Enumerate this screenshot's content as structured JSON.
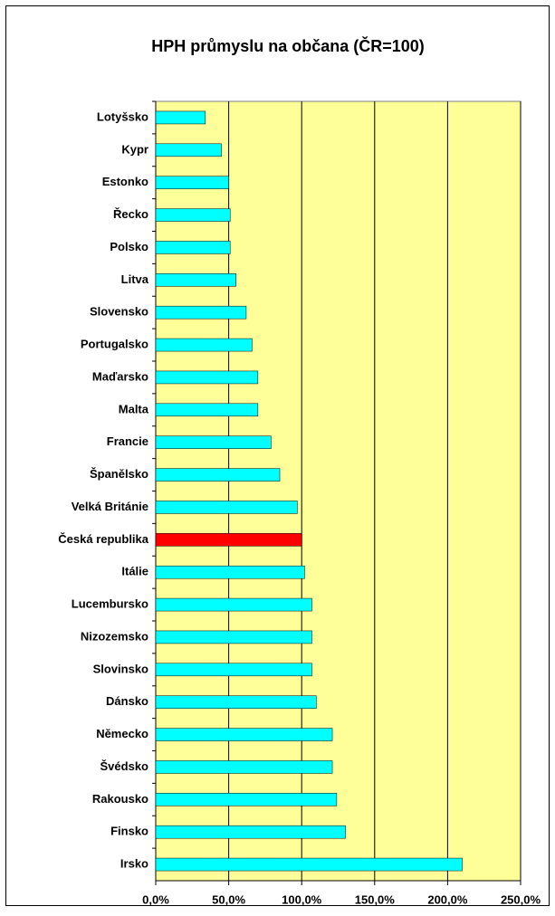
{
  "chart_data": {
    "type": "barh",
    "title": "HPH průmyslu na občana (ČR=100)",
    "categories": [
      "Lotyšsko",
      "Kypr",
      "Estonko",
      "Řecko",
      "Polsko",
      "Litva",
      "Slovensko",
      "Portugalsko",
      "Maďarsko",
      "Malta",
      "Francie",
      "Španělsko",
      "Velká Británie",
      "Česká republika",
      "Itálie",
      "Lucembursko",
      "Nizozemsko",
      "Slovinsko",
      "Dánsko",
      "Německo",
      "Švédsko",
      "Rakousko",
      "Finsko",
      "Irsko"
    ],
    "values": [
      34,
      45,
      50,
      51,
      51,
      55,
      62,
      66,
      70,
      70,
      79,
      85,
      97,
      100,
      102,
      107,
      107,
      107,
      110,
      121,
      121,
      124,
      130,
      210
    ],
    "colors": [
      "#00ffff",
      "#00ffff",
      "#00ffff",
      "#00ffff",
      "#00ffff",
      "#00ffff",
      "#00ffff",
      "#00ffff",
      "#00ffff",
      "#00ffff",
      "#00ffff",
      "#00ffff",
      "#00ffff",
      "#ff0000",
      "#00ffff",
      "#00ffff",
      "#00ffff",
      "#00ffff",
      "#00ffff",
      "#00ffff",
      "#00ffff",
      "#00ffff",
      "#00ffff",
      "#00ffff"
    ],
    "xlim": [
      0,
      250
    ],
    "xticks": [
      {
        "value": 0,
        "label": "0,0%"
      },
      {
        "value": 50,
        "label": "50,0%"
      },
      {
        "value": 100,
        "label": "100,0%"
      },
      {
        "value": 150,
        "label": "150,0%"
      },
      {
        "value": 200,
        "label": "200,0%"
      },
      {
        "value": 250,
        "label": "250,0%"
      }
    ],
    "grid": true,
    "plot_background": "#ffff99"
  }
}
